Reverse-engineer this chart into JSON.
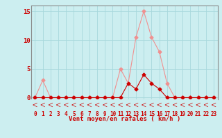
{
  "x_labels": [
    "0",
    "1",
    "2",
    "3",
    "4",
    "5",
    "6",
    "7",
    "8",
    "9",
    "10",
    "11",
    "12",
    "13",
    "14",
    "15",
    "16",
    "17",
    "18",
    "19",
    "20",
    "21",
    "22",
    "23"
  ],
  "x_values": [
    0,
    1,
    2,
    3,
    4,
    5,
    6,
    7,
    8,
    9,
    10,
    11,
    12,
    13,
    14,
    15,
    16,
    17,
    18,
    19,
    20,
    21,
    22,
    23
  ],
  "rafales_y": [
    0,
    3,
    0,
    0,
    0,
    0,
    0,
    0,
    0,
    0,
    0,
    5,
    2.5,
    10.5,
    15,
    10.5,
    8,
    2.5,
    0,
    0,
    0,
    0,
    0,
    0
  ],
  "moyen_y": [
    0,
    0,
    0,
    0,
    0,
    0,
    0,
    0,
    0,
    0,
    0,
    0,
    2.5,
    1.5,
    4,
    2.5,
    1.5,
    0,
    0,
    0,
    0,
    0,
    0,
    0
  ],
  "rafales_color": "#f09090",
  "moyen_color": "#cc0000",
  "bg_color": "#cceef0",
  "grid_color": "#a8d8dc",
  "axis_color": "#888888",
  "xlabel": "Vent moyen/en rafales ( km/h )",
  "xlabel_color": "#cc0000",
  "tick_color": "#cc0000",
  "arrow_color": "#cc0000",
  "ylim": [
    -0.3,
    16
  ],
  "yticks": [
    0,
    5,
    10,
    15
  ],
  "marker": "D",
  "marker_size": 2.5,
  "linewidth": 0.8
}
